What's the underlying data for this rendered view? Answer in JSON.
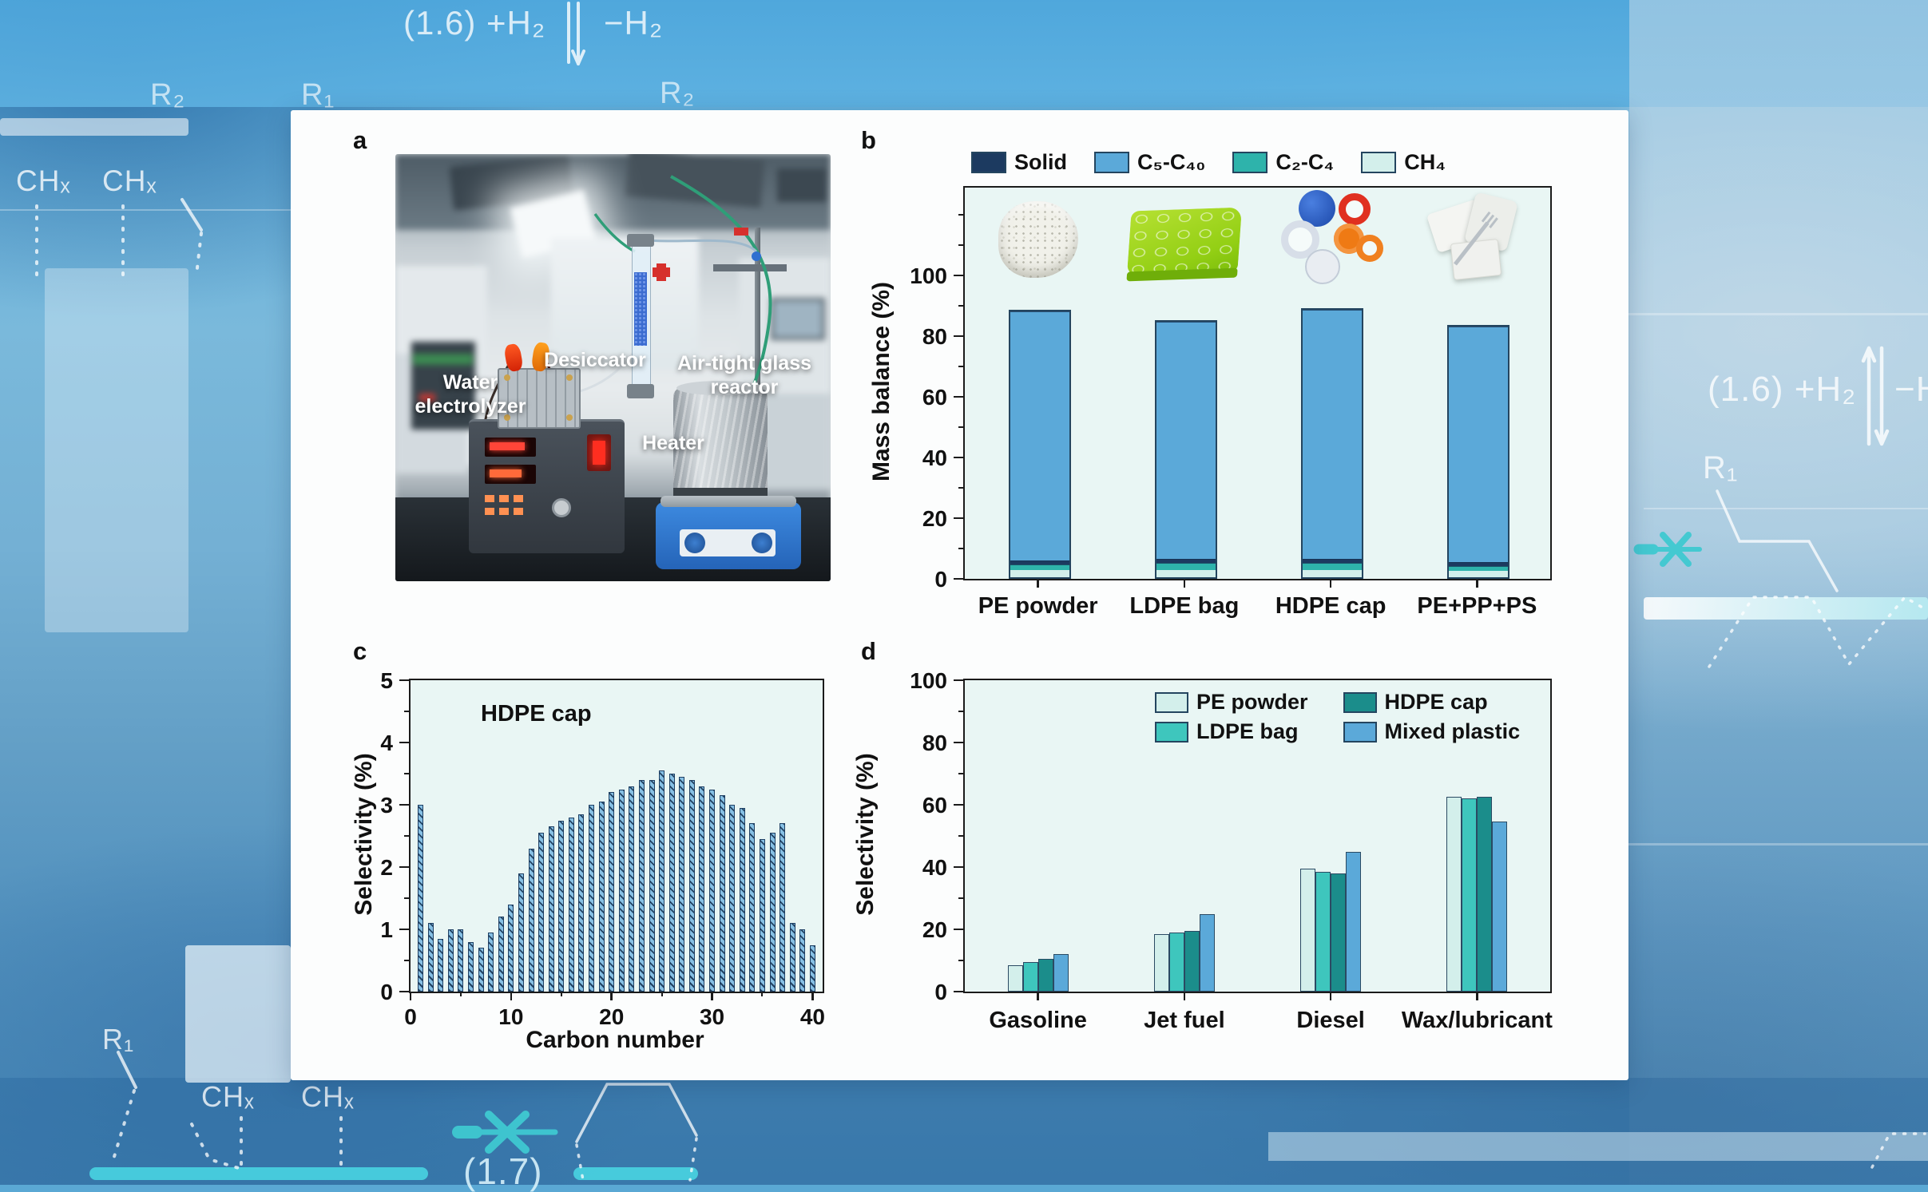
{
  "background": {
    "annotations": {
      "eq_top_left": "(1.6) +H₂",
      "eq_top_right": "−H₂",
      "r2_top_a": "R₂",
      "r1_top": "R₁",
      "r2_top_b": "R₂",
      "chx_top_1": "CHₓ",
      "chx_top_2": "CHₓ",
      "eq_right_left": "(1.6) +H₂",
      "eq_right_right": "−H",
      "r1_right": "R₁",
      "r1_bottom": "R₁",
      "chx_bottom_1": "CHₓ",
      "chx_bottom_2": "CHₓ",
      "note_bottom": "(1.7)"
    },
    "colors": {
      "teal_accent": "#3fc9d1",
      "cyan_bar": "#49d6e2"
    }
  },
  "figure": {
    "panel_labels": {
      "a": "a",
      "b": "b",
      "c": "c",
      "d": "d"
    },
    "panel_a": {
      "labels": {
        "water_electrolyzer": "Water electrolyzer",
        "desiccator": "Desiccator",
        "air_tight": "Air-tight glass reactor",
        "heater": "Heater"
      }
    },
    "panel_b": {
      "ylabel": "Mass balance (%)"
    },
    "panel_c": {
      "annotation": "HDPE cap",
      "ylabel": "Selectivity (%)",
      "xlabel": "Carbon number"
    },
    "panel_d": {
      "ylabel": "Selectivity (%)"
    }
  },
  "chart_data": [
    {
      "panel": "b",
      "type": "bar",
      "stacked": true,
      "ylabel": "Mass balance (%)",
      "categories": [
        "PE powder",
        "LDPE bag",
        "HDPE cap",
        "PE+PP+PS"
      ],
      "series": [
        {
          "name": "CH₄",
          "color": "#d3efeb",
          "values": [
            2.5,
            2.5,
            2.5,
            2
          ]
        },
        {
          "name": "C₂-C₄",
          "color": "#2eb3ab",
          "values": [
            1.5,
            2,
            2,
            1.5
          ]
        },
        {
          "name": "Solid",
          "color": "#1c3a60",
          "values": [
            1,
            1,
            1,
            1
          ]
        },
        {
          "name": "C₅-C₄₀",
          "color": "#5ba9d9",
          "values": [
            82,
            78,
            82,
            77.5
          ]
        }
      ],
      "totals": [
        87,
        83.5,
        87.5,
        82
      ],
      "legend_order": [
        "Solid",
        "C₅-C₄₀",
        "C₂-C₄",
        "CH₄"
      ],
      "yticks": [
        0,
        20,
        40,
        60,
        80,
        100
      ],
      "ylim": [
        0,
        129
      ],
      "legend_position": "top"
    },
    {
      "panel": "c",
      "type": "bar",
      "annotation": "HDPE cap",
      "xlabel": "Carbon number",
      "ylabel": "Selectivity (%)",
      "x_range": [
        1,
        40
      ],
      "values": [
        3.0,
        1.1,
        0.85,
        1.0,
        1.0,
        0.8,
        0.7,
        0.95,
        1.2,
        1.4,
        1.9,
        2.3,
        2.55,
        2.65,
        2.75,
        2.8,
        2.85,
        3.0,
        3.05,
        3.2,
        3.25,
        3.3,
        3.4,
        3.4,
        3.55,
        3.5,
        3.45,
        3.4,
        3.3,
        3.25,
        3.15,
        3.0,
        2.95,
        2.7,
        2.45,
        2.55,
        2.7,
        1.1,
        1.0,
        0.75
      ],
      "bar_color": "#86c0e4",
      "hatch_color": "#173454",
      "yticks": [
        0,
        1,
        2,
        3,
        4,
        5
      ],
      "xticks": [
        0,
        10,
        20,
        30,
        40
      ],
      "ylim": [
        0,
        5
      ],
      "xlim": [
        0,
        41
      ]
    },
    {
      "panel": "d",
      "type": "bar",
      "grouped": true,
      "ylabel": "Selectivity (%)",
      "categories": [
        "Gasoline",
        "Jet fuel",
        "Diesel",
        "Wax/lubricant"
      ],
      "series": [
        {
          "name": "PE powder",
          "color": "#d3efeb",
          "values": [
            8.5,
            18.5,
            39.5,
            62.5
          ]
        },
        {
          "name": "LDPE bag",
          "color": "#3ec6bd",
          "values": [
            9.5,
            19,
            38.5,
            62
          ]
        },
        {
          "name": "HDPE cap",
          "color": "#1b8d8b",
          "values": [
            10.5,
            19.5,
            38,
            62.5
          ]
        },
        {
          "name": "Mixed plastic",
          "color": "#5ba9d9",
          "values": [
            12,
            25,
            45,
            54.5
          ]
        }
      ],
      "yticks": [
        0,
        20,
        40,
        60,
        80,
        100
      ],
      "ylim": [
        0,
        100
      ],
      "legend_position": "top-center-inside"
    }
  ]
}
